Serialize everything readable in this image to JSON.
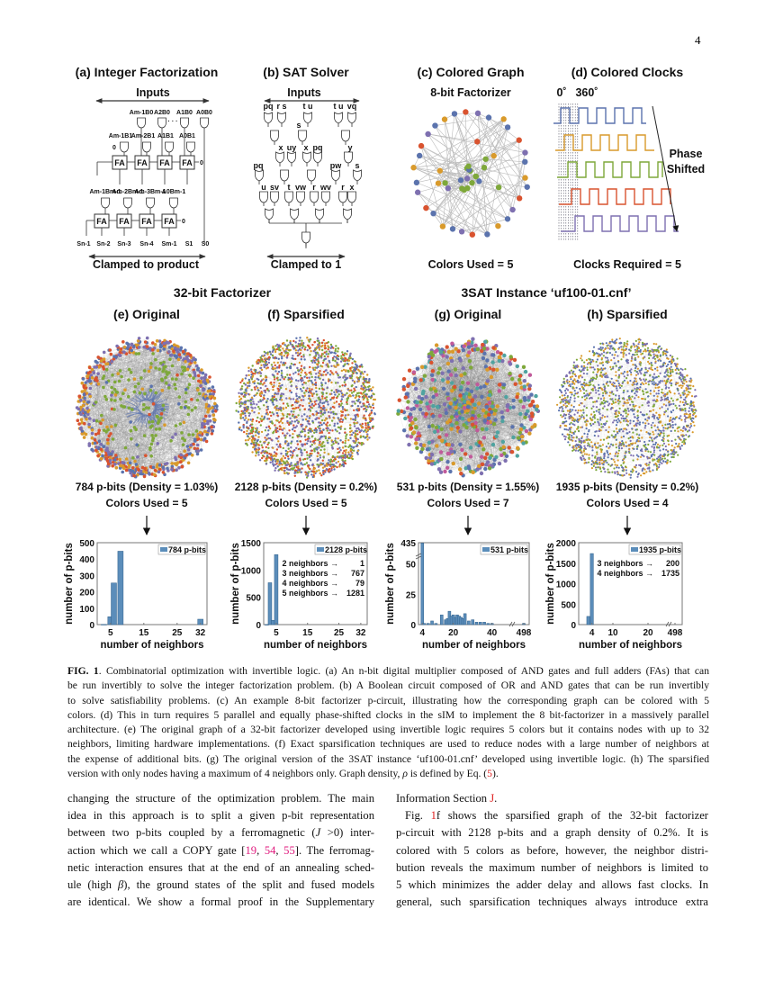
{
  "page_number": "4",
  "palette": {
    "blue": "#5b73ad",
    "orange": "#d99a2b",
    "green": "#7ea83a",
    "red": "#d9532f",
    "purple": "#7e70b0",
    "bar": "#5b8dba",
    "bar_edge": "#2f5f8a",
    "edge": "#9a9a9a"
  },
  "panel_a": {
    "title": "(a) Integer Factorization",
    "inputs": "Inputs",
    "row1": [
      "Am-1B0",
      "A2B0",
      "A1B0",
      "A0B0"
    ],
    "row2": [
      "Am-1B1",
      "Am-2B1",
      "A1B1",
      "A0B1"
    ],
    "row3": [
      "Am-1Bm-1",
      "Am-2Bm-1",
      "Am-3Bm-1",
      "A0Bm-1"
    ],
    "fa": "FA",
    "zero": "0",
    "outputs": [
      "Sn-1",
      "Sn-2",
      "Sn-3",
      "Sn-4",
      "Sm-1",
      "S1",
      "S0"
    ],
    "dots": "· · ·",
    "clamped": "Clamped to product"
  },
  "panel_b": {
    "title": "(b) SAT Solver",
    "inputs": "Inputs",
    "labels": [
      "pq",
      "r s",
      "t u",
      "t u",
      "vq",
      "s",
      "x",
      "uy",
      "x",
      "pq",
      "y",
      "pq",
      "pw",
      "s",
      "u",
      "sv",
      "t",
      "vw",
      "r",
      "wv",
      "r",
      "x"
    ],
    "clamped": "Clamped to 1"
  },
  "panel_c": {
    "title": "(c) Colored Graph",
    "subtitle": "8-bit Factorizer",
    "footer": "Colors Used = 5"
  },
  "panel_d": {
    "title": "(d) Colored Clocks",
    "phase0": "0˚",
    "phase360": "360˚",
    "arrow_label_1": "Phase",
    "arrow_label_2": "Shifted",
    "footer": "Clocks Required = 5"
  },
  "group_titles": {
    "left": "32-bit Factorizer",
    "right": "3SAT Instance ‘uf100-01.cnf’"
  },
  "panels_efgh": [
    {
      "title": "(e) Original",
      "stats": "784 p-bits (Density = 1.03%)",
      "colors": "Colors Used = 5"
    },
    {
      "title": "(f) Sparsified",
      "stats": "2128 p-bits (Density = 0.2%)",
      "colors": "Colors Used = 5"
    },
    {
      "title": "(g) Original",
      "stats": "531 p-bits (Density = 1.55%)",
      "colors": "Colors Used = 7"
    },
    {
      "title": "(h) Sparsified",
      "stats": "1935 p-bits (Density = 0.2%)",
      "colors": "Colors Used = 4"
    }
  ],
  "chart_data": [
    {
      "type": "bar",
      "legend": "784 p-bits",
      "xlabel": "number of neighbors",
      "ylabel": "number of p-bits",
      "xlim": [
        1,
        34
      ],
      "ylim": [
        0,
        500
      ],
      "xticks": [
        "5",
        "15",
        "25",
        "32"
      ],
      "xtick_values": [
        5,
        15,
        25,
        32
      ],
      "yticks": [
        "0",
        "100",
        "200",
        "300",
        "400",
        "500"
      ],
      "ytick_values": [
        0,
        100,
        200,
        300,
        400,
        500
      ],
      "x": [
        3,
        5,
        6,
        8,
        32
      ],
      "y": [
        1,
        48,
        254,
        448,
        33
      ],
      "annotations": []
    },
    {
      "type": "bar",
      "legend": "2128 p-bits",
      "xlabel": "number of neighbors",
      "ylabel": "number of p-bits",
      "xlim": [
        1,
        34
      ],
      "ylim": [
        0,
        1500
      ],
      "xticks": [
        "5",
        "15",
        "25",
        "32"
      ],
      "xtick_values": [
        5,
        15,
        25,
        32
      ],
      "yticks": [
        "0",
        "500",
        "1000",
        "1500"
      ],
      "ytick_values": [
        0,
        500,
        1000,
        1500
      ],
      "x": [
        2,
        3,
        4,
        5
      ],
      "y": [
        1,
        767,
        79,
        1281
      ],
      "annotations": [
        {
          "label": "2 neighbors →",
          "value": "1"
        },
        {
          "label": "3 neighbors →",
          "value": "767"
        },
        {
          "label": "4 neighbors →",
          "value": "79"
        },
        {
          "label": "5 neighbors →",
          "value": "1281"
        }
      ]
    },
    {
      "type": "bar",
      "legend": "531 p-bits",
      "xlabel": "number of neighbors",
      "ylabel": "number of p-bits",
      "broken_axes": true,
      "xticks": [
        "4",
        "20",
        "40",
        "498"
      ],
      "xtick_values": [
        4,
        20,
        40,
        498
      ],
      "yticks": [
        "0",
        "25",
        "50",
        "435"
      ],
      "ytick_values": [
        0,
        25,
        50,
        435
      ],
      "x": [
        4,
        5,
        7,
        9,
        11,
        14,
        16,
        17,
        18,
        19,
        20,
        21,
        22,
        23,
        24,
        25,
        26,
        28,
        30,
        32,
        34,
        36,
        38,
        40,
        498
      ],
      "y": [
        425,
        1,
        1,
        3,
        1,
        8,
        4,
        5,
        11,
        7,
        8,
        6,
        8,
        7,
        6,
        5,
        9,
        3,
        4,
        2,
        2,
        2,
        1,
        1,
        1
      ],
      "annotations": []
    },
    {
      "type": "bar",
      "legend": "1935 p-bits",
      "xlabel": "number of neighbors",
      "ylabel": "number of p-bits",
      "broken_axes": true,
      "ylim": [
        0,
        2000
      ],
      "xticks": [
        "4",
        "10",
        "20",
        "498"
      ],
      "xtick_values": [
        4,
        10,
        20,
        498
      ],
      "yticks": [
        "0",
        "500",
        "1000",
        "1500",
        "2000"
      ],
      "ytick_values": [
        0,
        500,
        1000,
        1500,
        2000
      ],
      "x": [
        3,
        4
      ],
      "y": [
        200,
        1735
      ],
      "annotations": [
        {
          "label": "3 neighbors →",
          "value": "200"
        },
        {
          "label": "4 neighbors →",
          "value": "1735"
        }
      ]
    }
  ],
  "caption": {
    "fig_label": "FIG. 1",
    "lines": [
      ". Combinatorial optimization with invertible logic. (a) An n-bit digital multiplier composed of AND gates and full adders (FAs) that can",
      "be run invertibly to solve the integer factorization problem. (b) A Boolean circuit composed of OR and AND gates that can be run invertibly",
      "to solve satisfiability problems.  (c) An example 8-bit factorizer p-circuit, illustrating how the corresponding graph can be colored with 5",
      "colors. (d) This in turn requires 5 parallel and equally phase-shifted clocks in the sIM to implement the 8 bit-factorizer in a massively parallel",
      "architecture. (e) The original graph of a 32-bit factorizer developed using invertible logic requires 5 colors but it contains nodes with up to 32",
      "neighbors, limiting hardware implementations. (f) Exact sparsification techniques are used to reduce nodes with a large number of neighbors at",
      "the expense of additional bits. (g) The original version of the 3SAT instance ‘uf100-01.cnf’ developed using invertible logic. (h) The sparsified",
      "version with only nodes having a maximum of 4 neighbors only. Graph density, "
    ],
    "rho": "ρ",
    "tail": " is defined by Eq. (",
    "eq_ref": "5",
    "end": ")."
  },
  "body_left": {
    "l1": "changing the structure of the optimization problem. The main",
    "l2": "idea in this approach is to split a given p-bit representation",
    "l3a": "between two p-bits coupled by a ferromagnetic (",
    "l3j": "J",
    "l3b": " >0) inter-",
    "l4a": "action which we call a COPY gate [",
    "c1": "19",
    "sep": ", ",
    "c2": "54",
    "c3": "55",
    "l4b": "]. The ferromag-",
    "l5": "netic interaction ensures that at the end of an annealing sched-",
    "l6a": "ule (high ",
    "beta": "β",
    "l6b": "), the ground states of the split and fused models",
    "l7": "are identical.  We show a formal proof in the Supplementary"
  },
  "body_right": {
    "l1a": "Information Section ",
    "sec_ref": "J",
    "l1b": ".",
    "l2a": "Fig. ",
    "fig_ref": "1",
    "l2b": "f shows the sparsified graph of the 32-bit factorizer",
    "l3": "p-circuit with 2128 p-bits and a graph density of 0.2%.  It is",
    "l4": "colored with 5 colors as before, however, the neighbor distri-",
    "l5": "bution reveals the maximum number of neighbors is limited to",
    "l6": "5 which minimizes the adder delay and allows fast clocks. In",
    "l7": "general, such sparsification techniques always introduce extra"
  }
}
